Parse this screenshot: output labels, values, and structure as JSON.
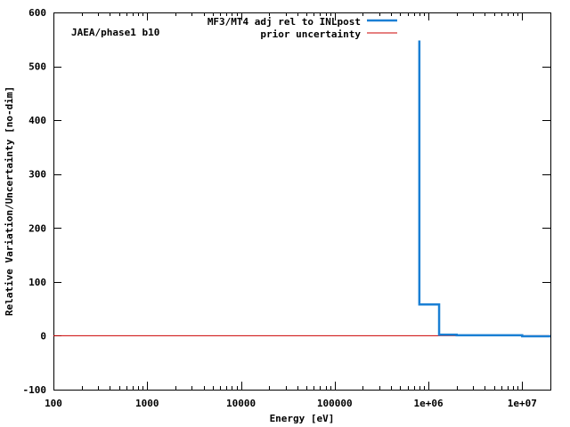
{
  "chart_data": {
    "type": "line",
    "xscale": "log",
    "xlim": [
      100,
      20000000
    ],
    "ylim": [
      -100,
      600
    ],
    "xlabel": "Energy [eV]",
    "ylabel": "Relative Variation/Uncertainty [no-dim]",
    "annotation": "JAEA/phase1 b10",
    "grid": false,
    "legend_position": "top-right",
    "x_ticks": [
      {
        "value": 100,
        "label": "100"
      },
      {
        "value": 1000,
        "label": "1000"
      },
      {
        "value": 10000,
        "label": "10000"
      },
      {
        "value": 100000,
        "label": "100000"
      },
      {
        "value": 1000000,
        "label": "1e+06"
      },
      {
        "value": 10000000,
        "label": "1e+07"
      }
    ],
    "y_ticks": [
      {
        "value": -100,
        "label": "-100"
      },
      {
        "value": 0,
        "label": "0"
      },
      {
        "value": 100,
        "label": "100"
      },
      {
        "value": 200,
        "label": "200"
      },
      {
        "value": 300,
        "label": "300"
      },
      {
        "value": 400,
        "label": "400"
      },
      {
        "value": 500,
        "label": "500"
      },
      {
        "value": 600,
        "label": "600"
      }
    ],
    "series": [
      {
        "name": "MF3/MT4 adj rel to INLpost",
        "color": "#1a7fd4",
        "style": "steps",
        "points": [
          [
            800000,
            548
          ],
          [
            800000,
            58
          ],
          [
            1300000,
            58
          ],
          [
            1300000,
            2
          ],
          [
            2000000,
            2
          ],
          [
            2000000,
            1
          ],
          [
            10000000,
            1
          ],
          [
            10000000,
            -1
          ],
          [
            20000000,
            -1
          ]
        ]
      },
      {
        "name": "prior uncertainty",
        "color": "#cc0000",
        "style": "line",
        "points": [
          [
            100,
            0
          ],
          [
            20000000,
            0
          ]
        ]
      }
    ]
  }
}
